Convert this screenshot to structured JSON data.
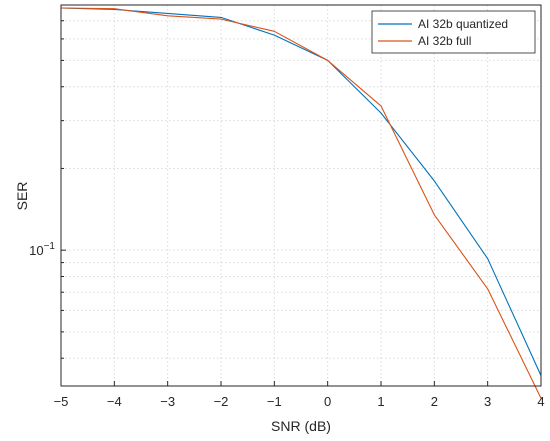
{
  "chart_data": {
    "type": "line",
    "xlabel": "SNR (dB)",
    "ylabel": "SER",
    "xlim": [
      -5,
      4
    ],
    "ylim": [
      0.0316,
      0.8
    ],
    "yscale": "log",
    "grid": true,
    "legend_position": "top-right",
    "x": [
      -5,
      -4,
      -3,
      -2,
      -1,
      0,
      1,
      2,
      3,
      4
    ],
    "x_tick_labels": [
      "−5",
      "−4",
      "−3",
      "−2",
      "−1",
      "0",
      "1",
      "2",
      "3",
      "4"
    ],
    "y_tick_labels": [
      {
        "value": 0.1,
        "base": "10",
        "exponent": "−1"
      }
    ],
    "series": [
      {
        "name": "AI 32b quantized",
        "color": "#0072BD",
        "values": [
          0.78,
          0.77,
          0.745,
          0.72,
          0.62,
          0.5,
          0.32,
          0.18,
          0.093,
          0.0345
        ]
      },
      {
        "name": "AI 32b full",
        "color": "#D95319",
        "values": [
          0.78,
          0.775,
          0.73,
          0.71,
          0.64,
          0.5,
          0.34,
          0.135,
          0.072,
          0.0285
        ]
      }
    ]
  }
}
